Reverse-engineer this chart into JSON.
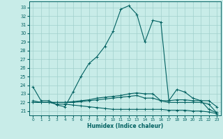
{
  "xlabel": "Humidex (Indice chaleur)",
  "background_color": "#c8ece8",
  "grid_color": "#a0d0cc",
  "line_color": "#006060",
  "xlim": [
    -0.5,
    23.5
  ],
  "ylim": [
    20.5,
    33.7
  ],
  "yticks": [
    21,
    22,
    23,
    24,
    25,
    26,
    27,
    28,
    29,
    30,
    31,
    32,
    33
  ],
  "xticks": [
    0,
    1,
    2,
    3,
    4,
    5,
    6,
    7,
    8,
    9,
    10,
    11,
    12,
    13,
    14,
    15,
    16,
    17,
    18,
    19,
    20,
    21,
    22,
    23
  ],
  "series": [
    {
      "x": [
        0,
        1,
        2,
        3,
        4,
        5,
        6,
        7,
        8,
        9,
        10,
        11,
        12,
        13,
        14,
        15,
        16,
        17,
        18,
        19,
        20,
        21,
        22,
        23
      ],
      "y": [
        23.8,
        22.2,
        22.2,
        21.7,
        21.5,
        23.2,
        25.0,
        26.5,
        27.3,
        28.5,
        30.2,
        32.8,
        33.2,
        32.2,
        29.0,
        31.5,
        31.3,
        22.2,
        23.5,
        23.2,
        22.5,
        22.2,
        21.2,
        20.8
      ]
    },
    {
      "x": [
        0,
        1,
        2,
        3,
        4,
        5,
        6,
        7,
        8,
        9,
        10,
        11,
        12,
        13,
        14,
        15,
        16,
        17,
        18,
        19,
        20,
        21,
        22,
        23
      ],
      "y": [
        22.2,
        22.0,
        22.0,
        22.0,
        22.0,
        22.1,
        22.2,
        22.3,
        22.5,
        22.6,
        22.7,
        22.8,
        23.0,
        23.1,
        23.0,
        23.0,
        22.2,
        22.2,
        22.3,
        22.3,
        22.2,
        22.2,
        22.2,
        21.5
      ]
    },
    {
      "x": [
        0,
        1,
        2,
        3,
        4,
        5,
        6,
        7,
        8,
        9,
        10,
        11,
        12,
        13,
        14,
        15,
        16,
        17,
        18,
        19,
        20,
        21,
        22,
        23
      ],
      "y": [
        22.0,
        22.0,
        22.0,
        21.8,
        21.8,
        21.7,
        21.6,
        21.5,
        21.4,
        21.3,
        21.2,
        21.2,
        21.2,
        21.2,
        21.2,
        21.2,
        21.2,
        21.1,
        21.1,
        21.1,
        21.0,
        21.0,
        20.9,
        20.7
      ]
    },
    {
      "x": [
        0,
        1,
        2,
        3,
        4,
        5,
        6,
        7,
        8,
        9,
        10,
        11,
        12,
        13,
        14,
        15,
        16,
        17,
        18,
        19,
        20,
        21,
        22,
        23
      ],
      "y": [
        22.0,
        22.0,
        22.0,
        22.0,
        22.0,
        22.0,
        22.1,
        22.2,
        22.3,
        22.4,
        22.5,
        22.6,
        22.7,
        22.8,
        22.5,
        22.5,
        22.2,
        22.0,
        22.0,
        22.0,
        22.0,
        22.0,
        21.8,
        20.8
      ]
    }
  ]
}
